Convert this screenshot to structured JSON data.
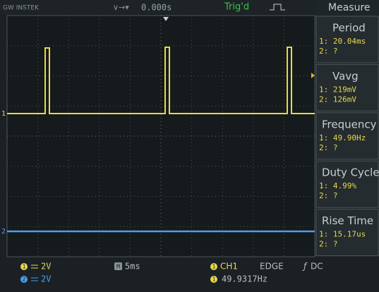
{
  "header": {
    "brand": "GW INSTEK",
    "trigger_position": "0.000s",
    "trigger_status": "Trig'd",
    "menu_title": "Measure"
  },
  "channel_markers": [
    "1",
    "2"
  ],
  "measurements": [
    {
      "name": "Period",
      "ch1": "1: 20.04ms",
      "ch2": "2:    ?"
    },
    {
      "name": "Vavg",
      "ch1": "1: 219mV",
      "ch2": "2: 126mV"
    },
    {
      "name": "Frequency",
      "ch1": "1: 49.90Hz",
      "ch2": "2:    ?"
    },
    {
      "name": "Duty Cycle",
      "ch1": "1: 4.99%",
      "ch2": "2:    ?"
    },
    {
      "name": "Rise Time",
      "ch1": "1: 15.17us",
      "ch2": "2:    ?"
    }
  ],
  "footer": {
    "ch1_label": "1",
    "ch1_scale": "2V",
    "ch2_label": "2",
    "ch2_scale": "2V",
    "timebase_label": "M",
    "timebase": "5ms",
    "trigger_source_label": "1",
    "trigger_source": "CH1",
    "trigger_type": "EDGE",
    "trigger_coupling": "DC",
    "frequency_label": "1",
    "frequency": "49.9317Hz"
  }
}
